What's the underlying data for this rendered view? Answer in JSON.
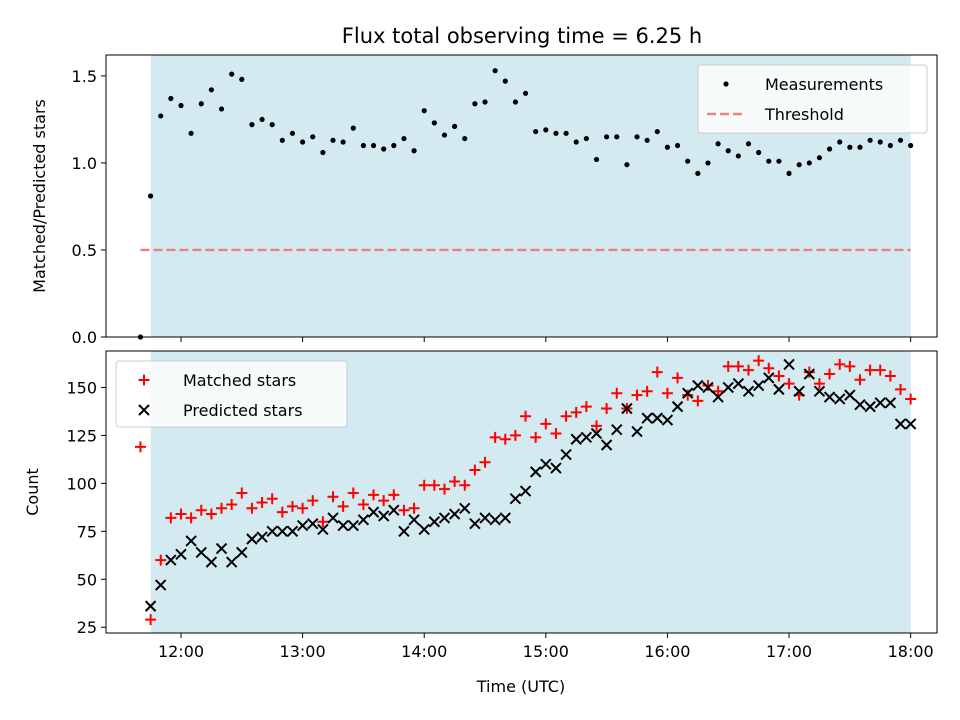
{
  "title": "Flux total observing time = 6.25 h",
  "colors": {
    "band": "#d4eaf1",
    "threshold": "#f08080",
    "matched": "#ff0000",
    "predicted": "#000000",
    "measurement": "#000000"
  },
  "chart_data": [
    {
      "type": "scatter",
      "ylabel": "Matched/Predicted stars",
      "ylim": [
        0,
        1.62
      ],
      "yticks": [
        0.0,
        0.5,
        1.0,
        1.5
      ],
      "ytick_labels": [
        "0.0",
        "0.5",
        "1.0",
        "1.5"
      ],
      "xlim": [
        "11:23",
        "18:13"
      ],
      "shaded_interval": [
        "11:45",
        "18:00"
      ],
      "legend_position": "upper right",
      "series": [
        {
          "name": "Measurements",
          "marker": "dot",
          "points": [
            [
              "11:40",
              0.0
            ],
            [
              "11:45",
              0.81
            ],
            [
              "11:50",
              1.27
            ],
            [
              "11:55",
              1.37
            ],
            [
              "12:00",
              1.33
            ],
            [
              "12:05",
              1.17
            ],
            [
              "12:10",
              1.34
            ],
            [
              "12:15",
              1.42
            ],
            [
              "12:20",
              1.31
            ],
            [
              "12:25",
              1.51
            ],
            [
              "12:30",
              1.48
            ],
            [
              "12:35",
              1.22
            ],
            [
              "12:40",
              1.25
            ],
            [
              "12:45",
              1.22
            ],
            [
              "12:50",
              1.13
            ],
            [
              "12:55",
              1.17
            ],
            [
              "13:00",
              1.12
            ],
            [
              "13:05",
              1.15
            ],
            [
              "13:10",
              1.06
            ],
            [
              "13:15",
              1.13
            ],
            [
              "13:20",
              1.12
            ],
            [
              "13:25",
              1.2
            ],
            [
              "13:30",
              1.1
            ],
            [
              "13:35",
              1.1
            ],
            [
              "13:40",
              1.08
            ],
            [
              "13:45",
              1.1
            ],
            [
              "13:50",
              1.14
            ],
            [
              "13:55",
              1.07
            ],
            [
              "14:00",
              1.3
            ],
            [
              "14:05",
              1.23
            ],
            [
              "14:10",
              1.16
            ],
            [
              "14:15",
              1.21
            ],
            [
              "14:20",
              1.14
            ],
            [
              "14:25",
              1.34
            ],
            [
              "14:30",
              1.35
            ],
            [
              "14:35",
              1.53
            ],
            [
              "14:40",
              1.47
            ],
            [
              "14:45",
              1.35
            ],
            [
              "14:50",
              1.4
            ],
            [
              "14:55",
              1.18
            ],
            [
              "15:00",
              1.19
            ],
            [
              "15:05",
              1.17
            ],
            [
              "15:10",
              1.17
            ],
            [
              "15:15",
              1.12
            ],
            [
              "15:20",
              1.14
            ],
            [
              "15:25",
              1.02
            ],
            [
              "15:30",
              1.15
            ],
            [
              "15:35",
              1.15
            ],
            [
              "15:40",
              0.99
            ],
            [
              "15:45",
              1.15
            ],
            [
              "15:50",
              1.13
            ],
            [
              "15:55",
              1.18
            ],
            [
              "16:00",
              1.09
            ],
            [
              "16:05",
              1.1
            ],
            [
              "16:10",
              1.01
            ],
            [
              "16:15",
              0.94
            ],
            [
              "16:20",
              1.0
            ],
            [
              "16:25",
              1.11
            ],
            [
              "16:30",
              1.07
            ],
            [
              "16:35",
              1.04
            ],
            [
              "16:40",
              1.11
            ],
            [
              "16:45",
              1.06
            ],
            [
              "16:50",
              1.01
            ],
            [
              "16:55",
              1.01
            ],
            [
              "17:00",
              0.94
            ],
            [
              "17:05",
              0.99
            ],
            [
              "17:10",
              1.0
            ],
            [
              "17:15",
              1.03
            ],
            [
              "17:20",
              1.08
            ],
            [
              "17:25",
              1.12
            ],
            [
              "17:30",
              1.09
            ],
            [
              "17:35",
              1.09
            ],
            [
              "17:40",
              1.13
            ],
            [
              "17:45",
              1.12
            ],
            [
              "17:50",
              1.1
            ],
            [
              "17:55",
              1.13
            ],
            [
              "18:00",
              1.1
            ]
          ]
        },
        {
          "name": "Threshold",
          "marker": "dashed-line",
          "points": [
            [
              "11:40",
              0.5
            ],
            [
              "18:00",
              0.5
            ]
          ]
        }
      ]
    },
    {
      "type": "scatter",
      "xlabel": "Time (UTC)",
      "ylabel": "Count",
      "ylim": [
        22,
        169
      ],
      "yticks": [
        25,
        50,
        75,
        100,
        125,
        150
      ],
      "ytick_labels": [
        "25",
        "50",
        "75",
        "100",
        "125",
        "150"
      ],
      "xlim": [
        "11:23",
        "18:13"
      ],
      "xticks": [
        "12:00",
        "13:00",
        "14:00",
        "15:00",
        "16:00",
        "17:00",
        "18:00"
      ],
      "xtick_labels": [
        "12:00",
        "13:00",
        "14:00",
        "15:00",
        "16:00",
        "17:00",
        "18:00"
      ],
      "shaded_interval": [
        "11:45",
        "18:00"
      ],
      "legend_position": "upper left",
      "series": [
        {
          "name": "Matched stars",
          "marker": "plus",
          "points": [
            [
              "11:40",
              119
            ],
            [
              "11:45",
              29
            ],
            [
              "11:50",
              60
            ],
            [
              "11:55",
              82
            ],
            [
              "12:00",
              84
            ],
            [
              "12:05",
              82
            ],
            [
              "12:10",
              86
            ],
            [
              "12:15",
              84
            ],
            [
              "12:20",
              87
            ],
            [
              "12:25",
              89
            ],
            [
              "12:30",
              95
            ],
            [
              "12:35",
              87
            ],
            [
              "12:40",
              90
            ],
            [
              "12:45",
              92
            ],
            [
              "12:50",
              85
            ],
            [
              "12:55",
              88
            ],
            [
              "13:00",
              87
            ],
            [
              "13:05",
              91
            ],
            [
              "13:10",
              80
            ],
            [
              "13:15",
              93
            ],
            [
              "13:20",
              88
            ],
            [
              "13:25",
              95
            ],
            [
              "13:30",
              89
            ],
            [
              "13:35",
              94
            ],
            [
              "13:40",
              91
            ],
            [
              "13:45",
              94
            ],
            [
              "13:50",
              86
            ],
            [
              "13:55",
              87
            ],
            [
              "14:00",
              99
            ],
            [
              "14:05",
              99
            ],
            [
              "14:10",
              97
            ],
            [
              "14:15",
              101
            ],
            [
              "14:20",
              99
            ],
            [
              "14:25",
              107
            ],
            [
              "14:30",
              111
            ],
            [
              "14:35",
              124
            ],
            [
              "14:40",
              123
            ],
            [
              "14:45",
              125
            ],
            [
              "14:50",
              135
            ],
            [
              "14:55",
              124
            ],
            [
              "15:00",
              131
            ],
            [
              "15:05",
              126
            ],
            [
              "15:10",
              135
            ],
            [
              "15:15",
              137
            ],
            [
              "15:20",
              140
            ],
            [
              "15:25",
              130
            ],
            [
              "15:30",
              139
            ],
            [
              "15:35",
              147
            ],
            [
              "15:40",
              139
            ],
            [
              "15:45",
              146
            ],
            [
              "15:50",
              148
            ],
            [
              "15:55",
              158
            ],
            [
              "16:00",
              147
            ],
            [
              "16:05",
              155
            ],
            [
              "16:10",
              146
            ],
            [
              "16:15",
              143
            ],
            [
              "16:20",
              151
            ],
            [
              "16:25",
              148
            ],
            [
              "16:30",
              161
            ],
            [
              "16:35",
              161
            ],
            [
              "16:40",
              159
            ],
            [
              "16:45",
              164
            ],
            [
              "16:50",
              160
            ],
            [
              "16:55",
              156
            ],
            [
              "17:00",
              152
            ],
            [
              "17:05",
              146
            ],
            [
              "17:10",
              158
            ],
            [
              "17:15",
              152
            ],
            [
              "17:20",
              157
            ],
            [
              "17:25",
              162
            ],
            [
              "17:30",
              161
            ],
            [
              "17:35",
              154
            ],
            [
              "17:40",
              159
            ],
            [
              "17:45",
              159
            ],
            [
              "17:50",
              156
            ],
            [
              "17:55",
              149
            ],
            [
              "18:00",
              144
            ]
          ]
        },
        {
          "name": "Predicted stars",
          "marker": "x",
          "points": [
            [
              "11:45",
              36
            ],
            [
              "11:50",
              47
            ],
            [
              "11:55",
              60
            ],
            [
              "12:00",
              63
            ],
            [
              "12:05",
              70
            ],
            [
              "12:10",
              64
            ],
            [
              "12:15",
              59
            ],
            [
              "12:20",
              66
            ],
            [
              "12:25",
              59
            ],
            [
              "12:30",
              64
            ],
            [
              "12:35",
              71
            ],
            [
              "12:40",
              72
            ],
            [
              "12:45",
              75
            ],
            [
              "12:50",
              75
            ],
            [
              "12:55",
              75
            ],
            [
              "13:00",
              78
            ],
            [
              "13:05",
              79
            ],
            [
              "13:10",
              76
            ],
            [
              "13:15",
              82
            ],
            [
              "13:20",
              78
            ],
            [
              "13:25",
              78
            ],
            [
              "13:30",
              81
            ],
            [
              "13:35",
              85
            ],
            [
              "13:40",
              83
            ],
            [
              "13:45",
              86
            ],
            [
              "13:50",
              75
            ],
            [
              "13:55",
              81
            ],
            [
              "14:00",
              76
            ],
            [
              "14:05",
              80
            ],
            [
              "14:10",
              82
            ],
            [
              "14:15",
              84
            ],
            [
              "14:20",
              87
            ],
            [
              "14:25",
              79
            ],
            [
              "14:30",
              82
            ],
            [
              "14:35",
              81
            ],
            [
              "14:40",
              82
            ],
            [
              "14:45",
              92
            ],
            [
              "14:50",
              96
            ],
            [
              "14:55",
              106
            ],
            [
              "15:00",
              110
            ],
            [
              "15:05",
              108
            ],
            [
              "15:10",
              115
            ],
            [
              "15:15",
              123
            ],
            [
              "15:20",
              124
            ],
            [
              "15:25",
              126
            ],
            [
              "15:30",
              120
            ],
            [
              "15:35",
              128
            ],
            [
              "15:40",
              139
            ],
            [
              "15:45",
              127
            ],
            [
              "15:50",
              134
            ],
            [
              "15:55",
              134
            ],
            [
              "16:00",
              133
            ],
            [
              "16:05",
              140
            ],
            [
              "16:10",
              147
            ],
            [
              "16:15",
              151
            ],
            [
              "16:20",
              150
            ],
            [
              "16:25",
              145
            ],
            [
              "16:30",
              150
            ],
            [
              "16:35",
              152
            ],
            [
              "16:40",
              148
            ],
            [
              "16:45",
              151
            ],
            [
              "16:50",
              155
            ],
            [
              "16:55",
              149
            ],
            [
              "17:00",
              162
            ],
            [
              "17:05",
              148
            ],
            [
              "17:10",
              157
            ],
            [
              "17:15",
              148
            ],
            [
              "17:20",
              145
            ],
            [
              "17:25",
              144
            ],
            [
              "17:30",
              146
            ],
            [
              "17:35",
              141
            ],
            [
              "17:40",
              140
            ],
            [
              "17:45",
              142
            ],
            [
              "17:50",
              142
            ],
            [
              "17:55",
              131
            ],
            [
              "18:00",
              131
            ]
          ]
        }
      ]
    }
  ]
}
